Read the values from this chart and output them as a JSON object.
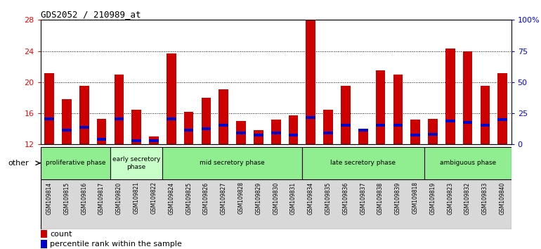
{
  "title": "GDS2052 / 210989_at",
  "samples": [
    "GSM109814",
    "GSM109815",
    "GSM109816",
    "GSM109817",
    "GSM109820",
    "GSM109821",
    "GSM109822",
    "GSM109824",
    "GSM109825",
    "GSM109826",
    "GSM109827",
    "GSM109828",
    "GSM109829",
    "GSM109830",
    "GSM109831",
    "GSM109834",
    "GSM109835",
    "GSM109836",
    "GSM109837",
    "GSM109838",
    "GSM109839",
    "GSM109818",
    "GSM109819",
    "GSM109823",
    "GSM109832",
    "GSM109833",
    "GSM109840"
  ],
  "count_values": [
    21.2,
    17.8,
    19.5,
    15.3,
    21.0,
    16.5,
    13.0,
    23.7,
    16.2,
    18.0,
    19.1,
    15.0,
    13.8,
    15.2,
    15.7,
    28.0,
    16.5,
    19.5,
    14.0,
    21.5,
    21.0,
    15.2,
    15.3,
    24.3,
    24.0,
    19.5,
    21.2
  ],
  "percentile_values": [
    15.3,
    13.8,
    14.2,
    12.7,
    15.3,
    12.5,
    12.5,
    15.3,
    13.8,
    14.0,
    14.5,
    13.5,
    13.2,
    13.5,
    13.2,
    15.5,
    13.5,
    14.5,
    13.8,
    14.5,
    14.5,
    13.2,
    13.3,
    15.0,
    14.8,
    14.5,
    15.2
  ],
  "phases": [
    {
      "name": "proliferative phase",
      "start": 0,
      "end": 4,
      "color": "#90EE90"
    },
    {
      "name": "early secretory\nphase",
      "start": 4,
      "end": 7,
      "color": "#C8FFC8"
    },
    {
      "name": "mid secretory phase",
      "start": 7,
      "end": 15,
      "color": "#90EE90"
    },
    {
      "name": "late secretory phase",
      "start": 15,
      "end": 22,
      "color": "#90EE90"
    },
    {
      "name": "ambiguous phase",
      "start": 22,
      "end": 27,
      "color": "#90EE90"
    }
  ],
  "ymin": 12,
  "ymax": 28,
  "yticks_left": [
    12,
    16,
    20,
    24,
    28
  ],
  "yticks_right": [
    0,
    25,
    50,
    75,
    100
  ],
  "bar_color": "#CC0000",
  "percentile_color": "#0000CC",
  "plot_bg_color": "#FFFFFF"
}
